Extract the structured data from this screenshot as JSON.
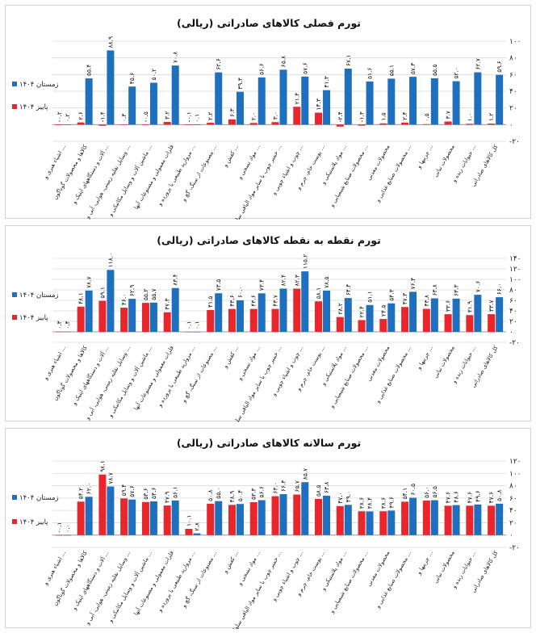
{
  "colors": {
    "winter": "#1f6fbf",
    "autumn": "#e8262b",
    "grid": "#d9d9d9",
    "axis": "#9a9a9a"
  },
  "categories": [
    "کل کالاهای صادراتی",
    "حیوانات زنده و ...",
    "محصولات نباتی",
    "چربیها و ...",
    "محصولات صنایع غذایی و ...",
    "محصولات معدنی",
    "محصولات صنایع شیمیایی و ...",
    "مواد پلاستیکی و ...",
    "پوست خام، چرم و ...",
    "چوب و اشیاء چوبی و ...",
    "خمیر چوب یا سایر مواد الیافی سلولزی و ...",
    "مواد نسجی و ...",
    "کفش و ...",
    "مصنوعات از سنگ، گچ و ...",
    "مروارید طبیعی یا پرورده و ...",
    "فلزات معمولی و مصنوعات آنها",
    "ماشین آلات و وسایل مکانیکی و ...",
    "وسایل نقلیه زمینی، هوایی، آبی و ...",
    "آلات و دستگاههای اپتیک و ...",
    "کالاها و محصولات گوناگون",
    "اشیاء هنری و ..."
  ],
  "chart_data": [
    {
      "type": "bar",
      "title": "تورم فصلی کالاهای صادراتی (ریالی)",
      "ylim": [
        -20,
        100
      ],
      "yticks": [
        "۱۰۰",
        "۸۰",
        "۶۰",
        "۴۰",
        "۲۰",
        "۰",
        "-۲۰"
      ],
      "legend": "left",
      "series": [
        {
          "name": "زمستان ۱۴۰۴",
          "color": "#1f6fbf",
          "values": [
            59.6,
            62.7,
            52.0,
            55.5,
            57.3,
            55.1,
            51.6,
            67.1,
            41.3,
            57.6,
            65.8,
            56.6,
            39.3,
            62.6,
            0.1,
            70.8,
            50.2,
            45.6,
            88.9,
            55.4,
            0.2
          ],
          "labels": [
            "۵۹.۶",
            "۶۲.۷",
            "۵۲.۰",
            "۵۵.۵",
            "۵۷.۳",
            "۵۵.۱",
            "۵۱.۶",
            "۶۷.۱",
            "۴۱.۳",
            "۵۷.۶",
            "۶۵.۸",
            "۵۶.۶",
            "۳۹.۳",
            "۶۲.۶",
            "۰.۱",
            "۷۰.۸",
            "۵۰.۲",
            "۴۵.۶",
            "۸۸.۹",
            "۵۵.۴",
            "۰.۲"
          ]
        },
        {
          "name": "پاییز ۱۴۰۴",
          "color": "#e8262b",
          "values": [
            1.2,
            1.0,
            3.7,
            0.5,
            2.4,
            1.5,
            -1.3,
            -2.4,
            14.3,
            21.4,
            3.0,
            2.0,
            6.3,
            2.2,
            -0.1,
            3.2,
            -0.5,
            0.3,
            -1.4,
            2.6,
            -0.2
          ],
          "labels": [
            "۱.۲",
            "۱.۰",
            "۳.۷",
            "۰.۵",
            "۲.۴",
            "۱.۵",
            "-۱.۳",
            "-۲.۴",
            "۱۴.۳",
            "۲۱.۴",
            "۳.۰",
            "۲.۰",
            "۶.۳",
            "۲.۲",
            "-۰.۱",
            "۳.۲",
            "-۰.۵",
            "۰.۳",
            "-۱.۴",
            "۲.۶",
            "-۰.۲"
          ]
        }
      ]
    },
    {
      "type": "bar",
      "title": "تورم نقطه به نقطه کالاهای صادراتی (ریالی)",
      "ylim": [
        -20,
        140
      ],
      "yticks": [
        "۱۴۰",
        "۱۲۰",
        "۱۰۰",
        "۸۰",
        "۶۰",
        "۴۰",
        "۲۰",
        "۰",
        "-۲۰"
      ],
      "legend": "left",
      "series": [
        {
          "name": "زمستان ۱۴۰۴",
          "color": "#1f6fbf",
          "values": [
            66.0,
            70.6,
            63.3,
            63.8,
            76.3,
            54.3,
            51.1,
            64.4,
            78.5,
            115.2,
            82.4,
            73.4,
            60.0,
            73.5,
            0.1,
            83.4,
            55.7,
            62.9,
            118.0,
            78.7,
            0.4
          ],
          "labels": [
            "۶۶.۰",
            "۷۰.۶",
            "۶۳.۳",
            "۶۳.۸",
            "۷۶.۳",
            "۵۴.۳",
            "۵۱.۱",
            "۶۴.۴",
            "۷۸.۵",
            "۱۱۵.۲",
            "۸۲.۴",
            "۷۳.۴",
            "۶۰.۰",
            "۷۳.۵",
            "۰.۱",
            "۸۳.۴",
            "۵۵.۷",
            "۶۲.۹",
            "۱۱۸.۰",
            "۷۸.۷",
            "۰.۴"
          ]
        },
        {
          "name": "پاییز ۱۴۰۴",
          "color": "#e8262b",
          "values": [
            33.7,
            31.9,
            33.6,
            43.8,
            47.3,
            24.5,
            22.4,
            28.2,
            58.1,
            82.3,
            43.7,
            43.6,
            43.6,
            41.5,
            0.1,
            37.3,
            55.2,
            46.0,
            59.1,
            48.1,
            0.3
          ],
          "labels": [
            "۳۳.۷",
            "۳۱.۹",
            "۳۳.۶",
            "۴۳.۸",
            "۴۷.۳",
            "۲۴.۵",
            "۲۲.۴",
            "۲۸.۲",
            "۵۸.۱",
            "۸۲.۳",
            "۴۳.۷",
            "۴۳.۶",
            "۴۳.۶",
            "۴۱.۵",
            "۰.۱",
            "۳۷.۳",
            "۵۵.۲",
            "۴۶.۰",
            "۵۹.۱",
            "۴۸.۱",
            "۰.۳"
          ]
        }
      ]
    },
    {
      "type": "bar",
      "title": "تورم سالانه کالاهای صادراتی (ریالی)",
      "ylim": [
        -20,
        120
      ],
      "yticks": [
        "۱۲۰",
        "۱۰۰",
        "۸۰",
        "۶۰",
        "۴۰",
        "۲۰",
        "۰",
        "-۲۰"
      ],
      "legend": "left",
      "series": [
        {
          "name": "زمستان ۱۴۰۴",
          "color": "#1f6fbf",
          "values": [
            50.8,
            49.6,
            48.6,
            56.5,
            60.5,
            39.6,
            38.4,
            49.0,
            63.8,
            85.7,
            66.3,
            56.6,
            50.4,
            55.0,
            2.8,
            56.1,
            54.6,
            57.6,
            78.7,
            62.0,
            0.0
          ],
          "labels": [
            "۵۰.۸",
            "۴۹.۶",
            "۴۸.۶",
            "۵۶.۵",
            "۶۰.۵",
            "۳۹.۶",
            "۳۸.۴",
            "۴۹.۰",
            "۶۳.۸",
            "۸۵.۷",
            "۶۶.۳",
            "۵۶.۶",
            "۵۰.۴",
            "۵۵.۰",
            "۲.۸",
            "۵۶.۱",
            "۵۴.۶",
            "۵۷.۶",
            "۷۸.۷",
            "۶۲.۰",
            "۰.۰"
          ]
        },
        {
          "name": "پاییز ۱۴۰۴",
          "color": "#e8262b",
          "values": [
            47.6,
            47.6,
            47.6,
            56.0,
            54.1,
            38.6,
            38.6,
            47.0,
            58.5,
            65.7,
            63.0,
            53.3,
            48.9,
            50.8,
            10.1,
            47.9,
            53.6,
            59.4,
            98.1,
            54.2,
            -0.1
          ],
          "labels": [
            "۴۷.۶",
            "۴۷.۶",
            "۴۷.۶",
            "۵۶.۰",
            "۵۴.۱",
            "۳۸.۶",
            "۳۸.۶",
            "۴۷.۰",
            "۵۸.۵",
            "۶۵.۷",
            "۶۳.۰",
            "۵۳.۳",
            "۴۸.۹",
            "۵۰.۸",
            "۱۰.۱",
            "۴۷.۹",
            "۵۳.۶",
            "۵۹.۴",
            "۹۸.۱",
            "۵۴.۲",
            "-۰.۱"
          ]
        }
      ]
    }
  ]
}
